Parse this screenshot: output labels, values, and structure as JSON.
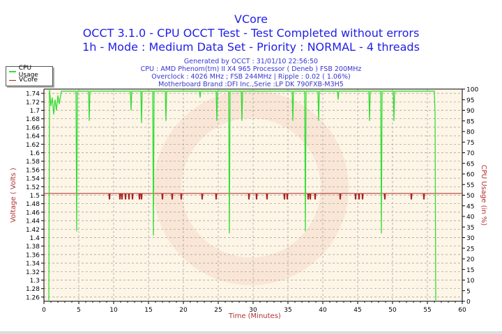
{
  "header": {
    "title": "VCore",
    "line2": "OCCT 3.1.0 - CPU OCCT Test - Test Completed without errors",
    "line3": "1h - Mode : Medium Data Set - Priority : NORMAL - 4 threads",
    "info": [
      "Generated by OCCT : 31/01/10 22:56:50",
      "CPU : AMD Phenom(tm) II X4 965 Processor ( Deneb ) FSB 200MHz",
      "Overclock : 4026 MHz ; FSB 244MHz | Ripple : 0.02 ( 1.06%)",
      "Motherboard Brand :DFI Inc.,Serie :LP DK 790FXB-M3H5"
    ]
  },
  "legend": [
    {
      "label": "CPU Usage",
      "color": "#33dd33"
    },
    {
      "label": "VCore",
      "color": "#aa2222"
    }
  ],
  "chart_data": {
    "type": "line",
    "title": "VCore",
    "xlabel": "Time (Minutes)",
    "ylabel_left": "Voltage ( Volts )",
    "ylabel_right": "CPU Usage (in %)",
    "xlim": [
      0,
      60
    ],
    "ylim_left": [
      1.25,
      1.75
    ],
    "ylim_right": [
      0,
      100
    ],
    "grid": true,
    "legend_position": "top-left",
    "x_ticks": [
      "0",
      "5",
      "10",
      "15",
      "20",
      "25",
      "30",
      "35",
      "40",
      "45",
      "50",
      "55",
      "60"
    ],
    "y_left_ticks": [
      "1.26",
      "1.28",
      "1.3",
      "1.32",
      "1.34",
      "1.36",
      "1.38",
      "1.4",
      "1.42",
      "1.44",
      "1.46",
      "1.48",
      "1.5",
      "1.52",
      "1.54",
      "1.56",
      "1.58",
      "1.6",
      "1.62",
      "1.64",
      "1.66",
      "1.68",
      "1.7",
      "1.72",
      "1.74"
    ],
    "y_right_ticks": [
      "0",
      "5",
      "10",
      "15",
      "20",
      "25",
      "30",
      "35",
      "40",
      "45",
      "50",
      "55",
      "60",
      "65",
      "70",
      "75",
      "80",
      "85",
      "90",
      "95",
      "100"
    ],
    "series": [
      {
        "name": "CPU Usage",
        "axis": "right",
        "color": "#33dd33",
        "points": [
          [
            0.7,
            0
          ],
          [
            0.8,
            100
          ],
          [
            1.0,
            92
          ],
          [
            1.2,
            96
          ],
          [
            1.4,
            88
          ],
          [
            1.6,
            95
          ],
          [
            1.8,
            90
          ],
          [
            2.0,
            97
          ],
          [
            2.2,
            93
          ],
          [
            2.5,
            99
          ],
          [
            4.6,
            99
          ],
          [
            4.7,
            33
          ],
          [
            4.8,
            99
          ],
          [
            6.4,
            99
          ],
          [
            6.5,
            85
          ],
          [
            6.6,
            99
          ],
          [
            12.4,
            99
          ],
          [
            12.5,
            90
          ],
          [
            12.6,
            99
          ],
          [
            13.9,
            99
          ],
          [
            14.0,
            84
          ],
          [
            14.1,
            99
          ],
          [
            15.6,
            99
          ],
          [
            15.7,
            31
          ],
          [
            15.8,
            99
          ],
          [
            17.4,
            99
          ],
          [
            17.5,
            85
          ],
          [
            17.6,
            99
          ],
          [
            22.3,
            99
          ],
          [
            22.4,
            96
          ],
          [
            22.5,
            99
          ],
          [
            24.7,
            99
          ],
          [
            24.8,
            85
          ],
          [
            24.9,
            99
          ],
          [
            26.5,
            99
          ],
          [
            26.6,
            32
          ],
          [
            26.7,
            99
          ],
          [
            28.3,
            99
          ],
          [
            28.4,
            85
          ],
          [
            28.5,
            99
          ],
          [
            35.6,
            99
          ],
          [
            35.7,
            85
          ],
          [
            35.8,
            99
          ],
          [
            37.4,
            99
          ],
          [
            37.5,
            33
          ],
          [
            37.6,
            99
          ],
          [
            39.3,
            99
          ],
          [
            39.4,
            85
          ],
          [
            39.5,
            99
          ],
          [
            42.1,
            99
          ],
          [
            42.2,
            95
          ],
          [
            42.3,
            99
          ],
          [
            46.6,
            99
          ],
          [
            46.7,
            85
          ],
          [
            46.8,
            99
          ],
          [
            48.3,
            99
          ],
          [
            48.4,
            32
          ],
          [
            48.5,
            99
          ],
          [
            50.1,
            99
          ],
          [
            50.2,
            85
          ],
          [
            50.3,
            99
          ],
          [
            56.0,
            99
          ],
          [
            56.1,
            88
          ],
          [
            56.2,
            0
          ]
        ]
      },
      {
        "name": "VCore",
        "axis": "left",
        "color": "#aa2222",
        "baseline": 1.504,
        "dip_value": 1.49,
        "dip_times": [
          9.4,
          10.9,
          11.2,
          11.7,
          12.2,
          12.7,
          13.7,
          14.0,
          17.0,
          18.4,
          19.7,
          22.7,
          24.7,
          29.4,
          30.5,
          32.0,
          34.5,
          34.9,
          37.9,
          38.2,
          38.9,
          42.5,
          44.7,
          45.2,
          45.7,
          48.9,
          52.7,
          54.5
        ]
      }
    ]
  }
}
